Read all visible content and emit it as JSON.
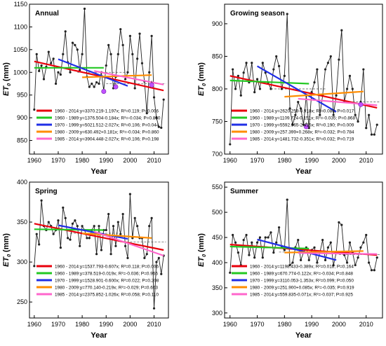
{
  "colors": {
    "t1960_2014": "#e8000b",
    "t1960_1989": "#22c822",
    "t1970_1999": "#1f2ee6",
    "t1980_2009": "#ff8c00",
    "t1985_2014": "#ff66cc",
    "series_line": "#222222",
    "marker_fill": "#c050ff",
    "mean_dash": "#666666"
  },
  "chart_data": [
    {
      "type": "line",
      "title": "Annual",
      "xlabel": "Year",
      "ylabel": "ET0 (mm)",
      "ylabel_main": "ET",
      "ylabel_sub": "0",
      "ylabel_unit": " (mm)",
      "xlim": [
        1958,
        2016
      ],
      "ylim": [
        820,
        1150
      ],
      "xticks": [
        1960,
        1970,
        1980,
        1990,
        2000,
        2010
      ],
      "yticks": [
        850,
        900,
        950,
        1000,
        1050,
        1100,
        1150
      ],
      "x": [
        1960,
        1961,
        1962,
        1963,
        1964,
        1965,
        1966,
        1967,
        1968,
        1969,
        1970,
        1971,
        1972,
        1973,
        1974,
        1975,
        1976,
        1977,
        1978,
        1979,
        1980,
        1981,
        1982,
        1983,
        1984,
        1985,
        1986,
        1987,
        1988,
        1989,
        1990,
        1991,
        1992,
        1993,
        1994,
        1995,
        1996,
        1997,
        1998,
        1999,
        2000,
        2001,
        2002,
        2003,
        2004,
        2005,
        2006,
        2007,
        2008,
        2009,
        2010,
        2011,
        2012,
        2013,
        2014
      ],
      "y": [
        918,
        1040,
        1003,
        1015,
        985,
        1012,
        1045,
        1020,
        1030,
        975,
        1000,
        995,
        1040,
        1090,
        1022,
        1000,
        1065,
        1060,
        1050,
        1005,
        1040,
        1140,
        990,
        968,
        975,
        968,
        978,
        975,
        1000,
        960,
        1015,
        1060,
        1040,
        965,
        990,
        1040,
        1095,
        1060,
        985,
        1000,
        1080,
        1040,
        965,
        1030,
        1085,
        1020,
        980,
        910,
        1000,
        1080,
        945,
        900,
        880,
        878,
        940
      ],
      "markers": [
        [
          1989,
          958
        ],
        [
          1994,
          968
        ],
        [
          2009,
          972
        ]
      ],
      "mean_dash": {
        "x0": 1990,
        "x1": 2015,
        "y": 975
      },
      "mean_dash_left": {
        "x0": 1978,
        "x1": 2000,
        "y": 1000
      },
      "trends": [
        {
          "label": "1960 - 2014:y=3370.219-1.197x; R²=0.119; P=0.006",
          "x0": 1960,
          "y0": 1024,
          "x1": 2014,
          "y1": 960,
          "color_key": "t1960_2014"
        },
        {
          "label": "1960 - 1989:y=1376.504-0.184x; R²=-0.034; P=0.850",
          "x0": 1960,
          "y0": 1010,
          "x1": 1989,
          "y1": 1010,
          "color_key": "t1960_1989"
        },
        {
          "label": "1970 - 1999:y=5021.512-2.027x; R²=0.106; P=0.044",
          "x0": 1970,
          "y0": 1029,
          "x1": 1999,
          "y1": 970,
          "color_key": "t1970_1999"
        },
        {
          "label": "1980 - 2009:y=630.492+0.181x; R²=-0.034; P=0.860",
          "x0": 1980,
          "y0": 989,
          "x1": 2009,
          "y1": 994,
          "color_key": "t1980_2009"
        },
        {
          "label": "1985 - 2014:y=3904.448-2.027x; R²=0.106; P=0.198",
          "x0": 1985,
          "y0": 1003,
          "x1": 2014,
          "y1": 973,
          "color_key": "t1985_2014"
        }
      ]
    },
    {
      "type": "line",
      "title": "Growing season",
      "xlabel": "Year",
      "ylabel": "ET0 (mm)",
      "ylabel_main": "ET",
      "ylabel_sub": "0",
      "ylabel_unit": " (mm)",
      "xlim": [
        1958,
        2016
      ],
      "ylim": [
        700,
        930
      ],
      "xticks": [
        1960,
        1970,
        1980,
        1990,
        2000,
        2010
      ],
      "yticks": [
        700,
        750,
        800,
        850,
        900
      ],
      "x": [
        1960,
        1961,
        1962,
        1963,
        1964,
        1965,
        1966,
        1967,
        1968,
        1969,
        1970,
        1971,
        1972,
        1973,
        1974,
        1975,
        1976,
        1977,
        1978,
        1979,
        1980,
        1981,
        1982,
        1983,
        1984,
        1985,
        1986,
        1987,
        1988,
        1989,
        1990,
        1991,
        1992,
        1993,
        1994,
        1995,
        1996,
        1997,
        1998,
        1999,
        2000,
        2001,
        2002,
        2003,
        2004,
        2005,
        2006,
        2007,
        2008,
        2009,
        2010,
        2011,
        2012,
        2013,
        2014
      ],
      "y": [
        715,
        830,
        800,
        820,
        790,
        825,
        840,
        810,
        840,
        795,
        815,
        800,
        840,
        825,
        810,
        800,
        830,
        850,
        835,
        800,
        820,
        915,
        770,
        745,
        760,
        780,
        770,
        745,
        790,
        740,
        795,
        810,
        830,
        760,
        790,
        830,
        840,
        850,
        760,
        790,
        845,
        890,
        780,
        800,
        820,
        800,
        760,
        750,
        780,
        830,
        740,
        760,
        730,
        730,
        745
      ],
      "markers": [
        [
          1988,
          742
        ],
        [
          2008,
          776
        ]
      ],
      "mean_dash": {
        "x0": 2005,
        "x1": 2015,
        "y": 780
      },
      "mean_dash_left": {
        "x0": 1975,
        "x1": 1995,
        "y": 800
      },
      "trends": [
        {
          "label": "1960 - 2014:y=2620.259-0.918x; R²=0.086; P=0.017",
          "x0": 1960,
          "y0": 820,
          "x1": 2014,
          "y1": 771,
          "color_key": "t1960_2014"
        },
        {
          "label": "1960 - 1989:y=1109.724-0.151x; R²=-0.035; P=0.868",
          "x0": 1960,
          "y0": 813,
          "x1": 1989,
          "y1": 808,
          "color_key": "t1960_1989"
        },
        {
          "label": "1970 - 1999:y=5592.965-2.415x; R²=0.190; P=0.009",
          "x0": 1970,
          "y0": 835,
          "x1": 1999,
          "y1": 765,
          "color_key": "t1970_1999"
        },
        {
          "label": "1980 - 2009:y=257.399+0.268x; R²=-0.032; P=0.784",
          "x0": 1980,
          "y0": 788,
          "x1": 2009,
          "y1": 796,
          "color_key": "t1980_2009"
        },
        {
          "label": "1985 - 2014:y=1481.732-0.351x; R²=0.032; P=0.719",
          "x0": 1985,
          "y0": 785,
          "x1": 2014,
          "y1": 775,
          "color_key": "t1985_2014"
        }
      ]
    },
    {
      "type": "line",
      "title": "Spring",
      "xlabel": "Year",
      "ylabel": "ET0 (mm)",
      "ylabel_main": "ET",
      "ylabel_sub": "0",
      "ylabel_unit": " (mm)",
      "xlim": [
        1958,
        2016
      ],
      "ylim": [
        230,
        400
      ],
      "xticks": [
        1960,
        1970,
        1980,
        1990,
        2000,
        2010
      ],
      "yticks": [
        250,
        300,
        350,
        400
      ],
      "x": [
        1960,
        1961,
        1962,
        1963,
        1964,
        1965,
        1966,
        1967,
        1968,
        1969,
        1970,
        1971,
        1972,
        1973,
        1974,
        1975,
        1976,
        1977,
        1978,
        1979,
        1980,
        1981,
        1982,
        1983,
        1984,
        1985,
        1986,
        1987,
        1988,
        1989,
        1990,
        1991,
        1992,
        1993,
        1994,
        1995,
        1996,
        1997,
        1998,
        1999,
        2000,
        2001,
        2002,
        2003,
        2004,
        2005,
        2006,
        2007,
        2008,
        2009,
        2010,
        2011,
        2012,
        2013,
        2014
      ],
      "y": [
        295,
        335,
        322,
        377,
        345,
        340,
        350,
        345,
        335,
        340,
        352,
        318,
        368,
        355,
        330,
        328,
        348,
        352,
        345,
        320,
        345,
        340,
        330,
        330,
        340,
        345,
        310,
        345,
        315,
        340,
        340,
        360,
        310,
        345,
        320,
        350,
        335,
        360,
        320,
        305,
        385,
        330,
        355,
        345,
        330,
        330,
        305,
        310,
        345,
        355,
        242,
        300,
        305,
        285,
        308
      ],
      "markers": [],
      "mean_dash": {
        "x0": 2000,
        "x1": 2015,
        "y": 325
      },
      "mean_dash_left": {
        "x0": 1975,
        "x1": 1995,
        "y": 336
      },
      "trends": [
        {
          "label": "1960 - 2014:y=1537.793-0.607x; R²=0.118; P=0.006",
          "x0": 1960,
          "y0": 348,
          "x1": 2014,
          "y1": 315,
          "color_key": "t1960_2014"
        },
        {
          "label": "1960 - 1989:y=378.519-0.019x; R²=-0.036; P=0.966",
          "x0": 1960,
          "y0": 341,
          "x1": 1989,
          "y1": 340,
          "color_key": "t1960_1989"
        },
        {
          "label": "1970 - 1999:y=1528.901-0.600x; R²=0.022; P=0.208",
          "x0": 1970,
          "y0": 346,
          "x1": 1999,
          "y1": 329,
          "color_key": "t1970_1999"
        },
        {
          "label": "1980 - 2009:y=770.140-0.219x; R²=-0.029; P=0.663",
          "x0": 1980,
          "y0": 336,
          "x1": 2009,
          "y1": 330,
          "color_key": "t1980_2009"
        },
        {
          "label": "1985 - 2014:y=2375.852-1.026x; R²=0.058; P=0.110",
          "x0": 1985,
          "y0": 338,
          "x1": 2014,
          "y1": 308,
          "color_key": "t1985_2014"
        }
      ]
    },
    {
      "type": "line",
      "title": "Summer",
      "xlabel": "Year",
      "ylabel": "ET0 (mm)",
      "ylabel_main": "ET",
      "ylabel_sub": "0",
      "ylabel_unit": " (mm)",
      "xlim": [
        1958,
        2016
      ],
      "ylim": [
        290,
        560
      ],
      "xticks": [
        1960,
        1970,
        1980,
        1990,
        2000,
        2010
      ],
      "yticks": [
        300,
        350,
        400,
        450,
        500,
        550
      ],
      "x": [
        1960,
        1961,
        1962,
        1963,
        1964,
        1965,
        1966,
        1967,
        1968,
        1969,
        1970,
        1971,
        1972,
        1973,
        1974,
        1975,
        1976,
        1977,
        1978,
        1979,
        1980,
        1981,
        1982,
        1983,
        1984,
        1985,
        1986,
        1987,
        1988,
        1989,
        1990,
        1991,
        1992,
        1993,
        1994,
        1995,
        1996,
        1997,
        1998,
        1999,
        2000,
        2001,
        2002,
        2003,
        2004,
        2005,
        2006,
        2007,
        2008,
        2009,
        2010,
        2011,
        2012,
        2013,
        2014
      ],
      "y": [
        380,
        455,
        440,
        420,
        395,
        445,
        455,
        415,
        440,
        410,
        440,
        450,
        410,
        450,
        450,
        460,
        420,
        440,
        470,
        430,
        425,
        525,
        395,
        400,
        430,
        445,
        405,
        420,
        430,
        405,
        425,
        430,
        400,
        420,
        445,
        405,
        430,
        440,
        395,
        420,
        480,
        475,
        415,
        400,
        440,
        420,
        395,
        410,
        430,
        440,
        455,
        400,
        385,
        385,
        410
      ],
      "markers": [],
      "mean_dash": {
        "x0": 2000,
        "x1": 2015,
        "y": 416
      },
      "mean_dash_left": {
        "x0": 1978,
        "x1": 1995,
        "y": 421
      },
      "trends": [
        {
          "label": "1960 - 2014:y=1198.433-0.389x; R²=0.018; P=0.164",
          "x0": 1960,
          "y0": 436,
          "x1": 2014,
          "y1": 415,
          "color_key": "t1960_2014"
        },
        {
          "label": "1960 - 1989:y=670.774-0.122x; R²=-0.034; P=0.848",
          "x0": 1960,
          "y0": 432,
          "x1": 1989,
          "y1": 428,
          "color_key": "t1960_1989"
        },
        {
          "label": "1970 - 1999:y=3110.053-1.353x; R²=0.099; P=0.050",
          "x0": 1970,
          "y0": 446,
          "x1": 1999,
          "y1": 405,
          "color_key": "t1970_1999"
        },
        {
          "label": "1980 - 2009:y=251.900+0.085x; R²=-0.035; P=0.919",
          "x0": 1980,
          "y0": 420,
          "x1": 2009,
          "y1": 423,
          "color_key": "t1980_2009"
        },
        {
          "label": "1985 - 2014:y=559.835-0.071x; R²=-0.037; P=0.925",
          "x0": 1985,
          "y0": 419,
          "x1": 2014,
          "y1": 417,
          "color_key": "t1985_2014"
        }
      ]
    }
  ]
}
